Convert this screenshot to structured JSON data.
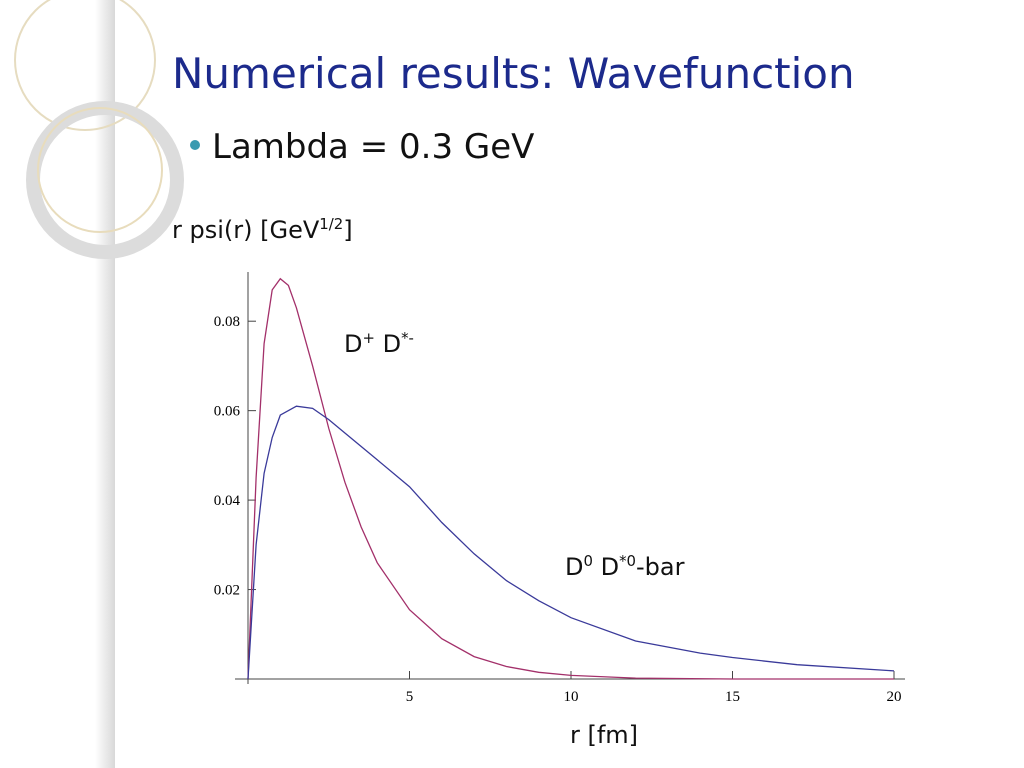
{
  "chart_data": {
    "type": "line",
    "title": "Numerical results: Wavefunction",
    "subtitle": "Lambda = 0.3 GeV",
    "ylabel": [
      {
        "text": "r psi(r) [GeV"
      },
      {
        "sup": "1/2"
      },
      {
        "text": "]"
      }
    ],
    "xlabel": "r [fm]",
    "xlim": [
      0,
      20
    ],
    "ylim": [
      0,
      0.091
    ],
    "xticks": [
      5,
      10,
      15,
      20
    ],
    "yticks": [
      0.02,
      0.04,
      0.06,
      0.08
    ],
    "series": [
      {
        "name": [
          {
            "text": "D"
          },
          {
            "sup": "+"
          },
          {
            "text": " D"
          },
          {
            "sup": "*-"
          }
        ],
        "color": "#a3306a",
        "x": [
          0,
          0.25,
          0.5,
          0.75,
          1,
          1.25,
          1.5,
          2,
          2.5,
          3,
          3.5,
          4,
          5,
          6,
          7,
          8,
          9,
          10,
          12,
          15,
          20
        ],
        "values": [
          0,
          0.045,
          0.075,
          0.087,
          0.0895,
          0.088,
          0.083,
          0.07,
          0.056,
          0.044,
          0.034,
          0.026,
          0.0155,
          0.009,
          0.005,
          0.0028,
          0.0015,
          0.0008,
          0.0002,
          0,
          0
        ]
      },
      {
        "name": [
          {
            "text": "D"
          },
          {
            "sup": "0"
          },
          {
            "text": " D"
          },
          {
            "sup": "*0"
          },
          {
            "text": "-bar"
          }
        ],
        "color": "#3a3a9a",
        "x": [
          0,
          0.25,
          0.5,
          0.75,
          1,
          1.5,
          2,
          2.5,
          3,
          4,
          5,
          6,
          7,
          8,
          9,
          10,
          12,
          14,
          15,
          17,
          20
        ],
        "values": [
          0,
          0.03,
          0.046,
          0.054,
          0.059,
          0.061,
          0.0605,
          0.058,
          0.055,
          0.049,
          0.043,
          0.035,
          0.028,
          0.022,
          0.0175,
          0.0137,
          0.0085,
          0.0058,
          0.0048,
          0.0032,
          0.0018
        ]
      }
    ]
  }
}
